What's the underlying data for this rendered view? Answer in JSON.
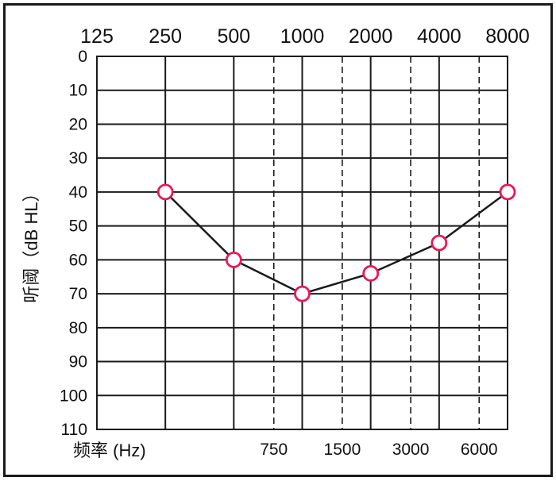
{
  "chart_data": {
    "type": "line",
    "title": "",
    "xlabel": "频率 (Hz)",
    "ylabel": "听阈（dB HL）",
    "x_ticks_top": [
      "125",
      "250",
      "500",
      "1000",
      "2000",
      "4000",
      "8000"
    ],
    "x_ticks_bottom": [
      "750",
      "1500",
      "3000",
      "6000"
    ],
    "y_ticks": [
      "0",
      "10",
      "20",
      "30",
      "40",
      "50",
      "60",
      "70",
      "80",
      "90",
      "100",
      "110"
    ],
    "ylim": [
      0,
      110
    ],
    "y_inverted": true,
    "x_scale": "log2",
    "grid": true,
    "minor_grid_dashed": true,
    "series": [
      {
        "x": [
          250,
          500,
          1000,
          2000,
          4000,
          8000
        ],
        "y": [
          40,
          60,
          70,
          64,
          55,
          40
        ],
        "marker": "circle",
        "marker_color": "#e8185a",
        "line_color": "#1a1a1a"
      }
    ]
  }
}
